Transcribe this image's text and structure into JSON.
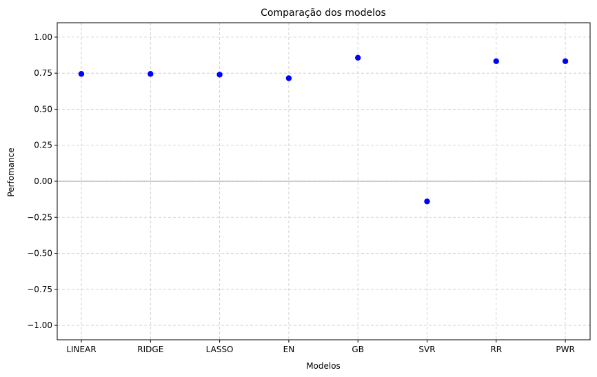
{
  "chart_data": {
    "type": "scatter",
    "title": "Comparação dos modelos",
    "xlabel": "Modelos",
    "ylabel": "Perfomance",
    "categories": [
      "LINEAR",
      "RIDGE",
      "LASSO",
      "EN",
      "GB",
      "SVR",
      "RR",
      "PWR"
    ],
    "values": [
      0.745,
      0.745,
      0.74,
      0.715,
      0.857,
      -0.14,
      0.833,
      0.833
    ],
    "ylim": [
      -1.1,
      1.1
    ],
    "yticks": [
      -1.0,
      -0.75,
      -0.5,
      -0.25,
      0.0,
      0.25,
      0.5,
      0.75,
      1.0
    ],
    "ytick_labels": [
      "−1.00",
      "−0.75",
      "−0.50",
      "−0.25",
      "0.00",
      "0.25",
      "0.50",
      "0.75",
      "1.00"
    ],
    "grid": true,
    "reference_line_y": 0,
    "point_color": "#0000ff",
    "grid_color": "#c8c8c8",
    "reference_line_color": "#808080"
  }
}
